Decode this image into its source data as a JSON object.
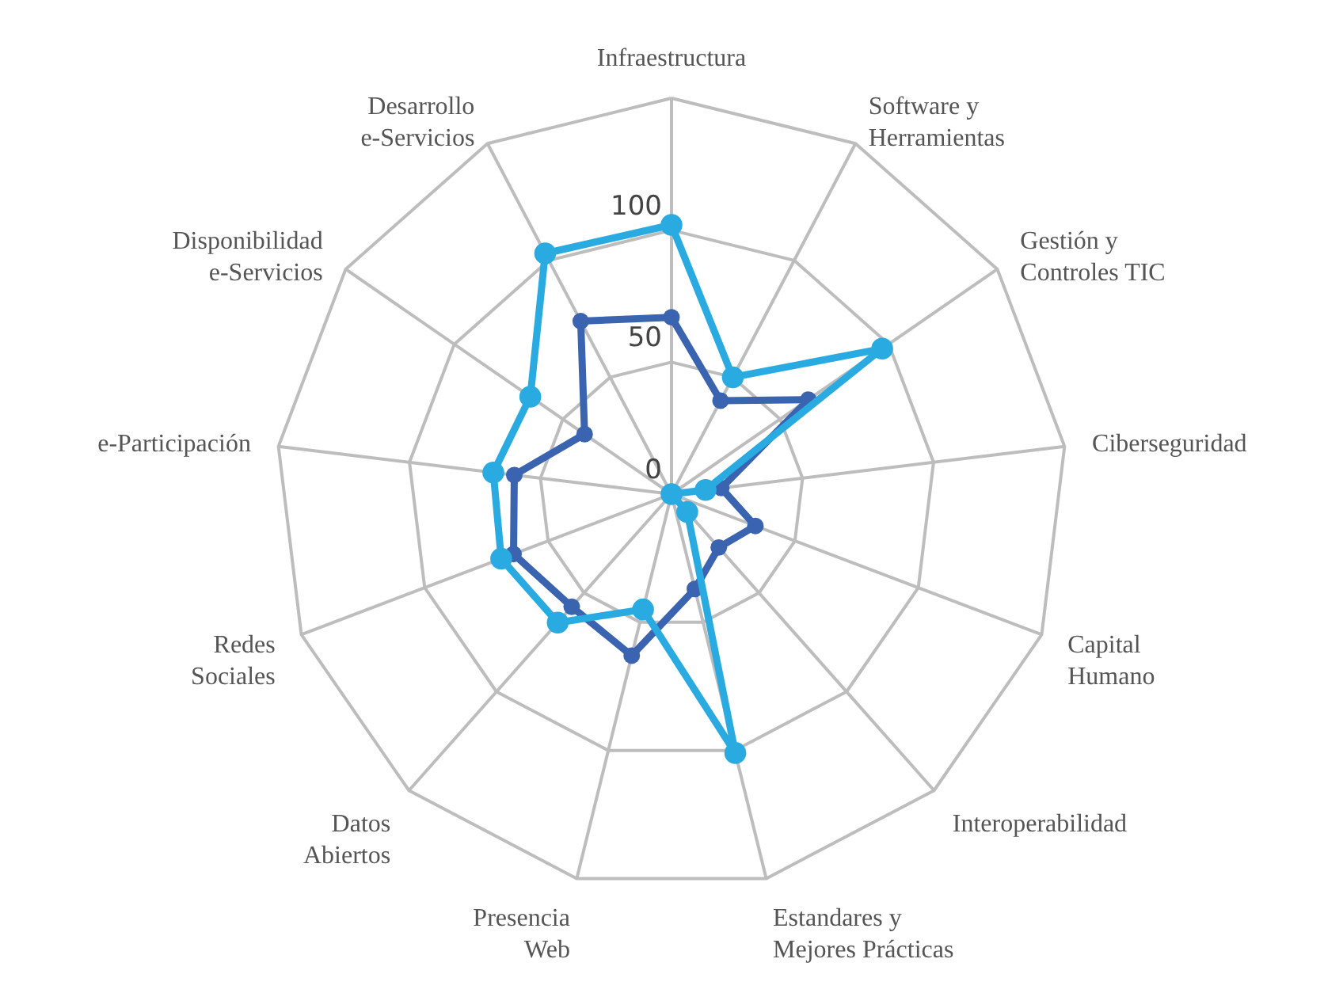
{
  "chart_data": {
    "type": "radar",
    "categories": [
      "Infraestructura",
      "Software y\nHerramientas",
      "Gestión y\nControles TIC",
      "Ciberseguridad",
      "Capital\nHumano",
      "Interoperabilidad",
      "Estandares y\nMejores Prácticas",
      "Presencia\nWeb",
      "Datos\nAbiertos",
      "Redes\nSociales",
      "e-Participación",
      "Disponibilidad\ne-Servicios",
      "Desarrollo\ne-Servicios"
    ],
    "series": [
      {
        "color": "#3a63b0",
        "values": [
          67,
          40,
          63,
          19,
          34,
          27,
          37,
          63,
          57,
          64,
          60,
          40,
          74
        ]
      },
      {
        "color": "#29abe2",
        "values": [
          102,
          50,
          97,
          13,
          0,
          9,
          101,
          45,
          65,
          69,
          68,
          65,
          103
        ]
      }
    ],
    "ylim": [
      0,
      150
    ],
    "yticks": [
      0,
      50,
      100
    ],
    "grid": true,
    "marker": "circle",
    "line_style": "solid"
  }
}
